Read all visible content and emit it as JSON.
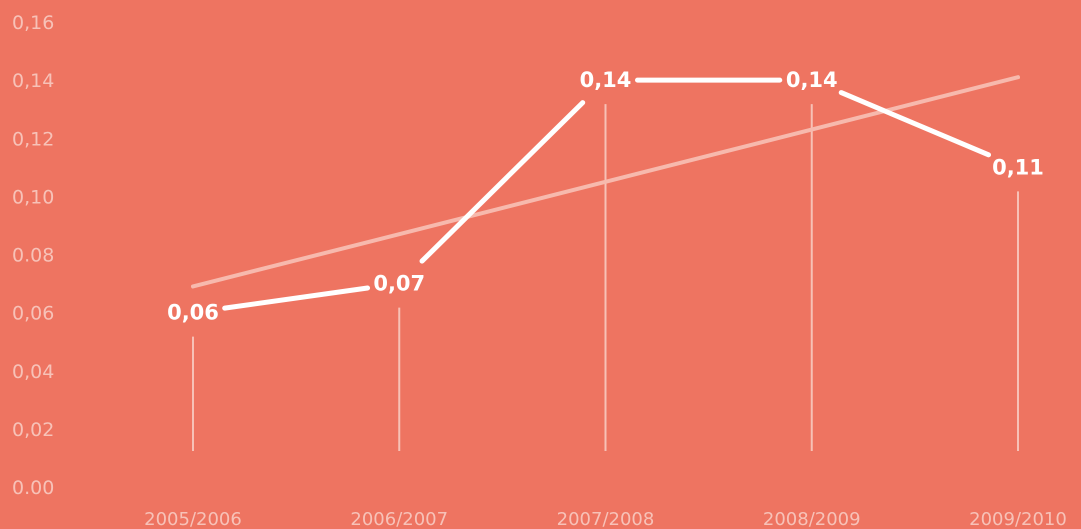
{
  "chart_data": {
    "type": "line",
    "title": "",
    "xlabel": "",
    "ylabel": "",
    "categories": [
      "2005/2006",
      "2006/2007",
      "2007/2008",
      "2008/2009",
      "2009/2010"
    ],
    "series": [
      {
        "values": [
          0.06,
          0.07,
          0.14,
          0.14,
          0.11
        ],
        "labels": [
          "0,06",
          "0,07",
          "0,14",
          "0,14",
          "0,11"
        ],
        "color": "#ffffff"
      }
    ],
    "trendline": {
      "start": 0.069,
      "end": 0.141,
      "color": "#f7b9ad"
    },
    "ylim": [
      0,
      0.16
    ],
    "yticks": [
      0,
      0.02,
      0.04,
      0.06,
      0.08,
      0.1,
      0.12,
      0.14,
      0.16
    ],
    "ytick_labels": [
      "0.00",
      "0,02",
      "0,04",
      "0,06",
      "0.08",
      "0,10",
      "0,12",
      "0,14",
      "0,16"
    ],
    "grid": false,
    "background_color": "#ee7461",
    "drop_line_color": "#f8cfc6"
  }
}
